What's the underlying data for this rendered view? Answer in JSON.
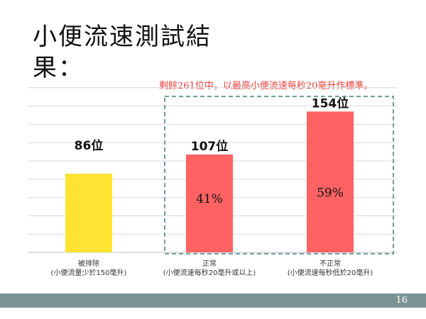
{
  "slide": {
    "title": "小便流速測試結果：",
    "note": "剩餘261位中，以最高小便流速每秒20毫升作標準。",
    "page_number": "16"
  },
  "colors": {
    "excluded": "#ffe333",
    "normal": "#ff6262",
    "abnormal": "#ff6262",
    "gridline": "#d9d9d9",
    "dashed_box": "#6f9c9c",
    "note": "#e8403a",
    "footer": "#7a9494"
  },
  "chart_data": {
    "type": "bar",
    "categories": [
      [
        "被排除",
        "(小便流量少於150毫升)"
      ],
      [
        "正常",
        "(小便流速每秒20毫升或以上)"
      ],
      [
        "不正常",
        "(小便流速每秒低於20毫升)"
      ]
    ],
    "values": [
      86,
      107,
      154
    ],
    "value_labels": [
      "86位",
      "107位",
      "154位"
    ],
    "percent_labels": [
      "",
      "41%",
      "59%"
    ],
    "ylim": [
      0,
      190
    ],
    "grid": true,
    "legend": "none",
    "annotation": "Normal and abnormal bars enclosed in a dashed box"
  }
}
